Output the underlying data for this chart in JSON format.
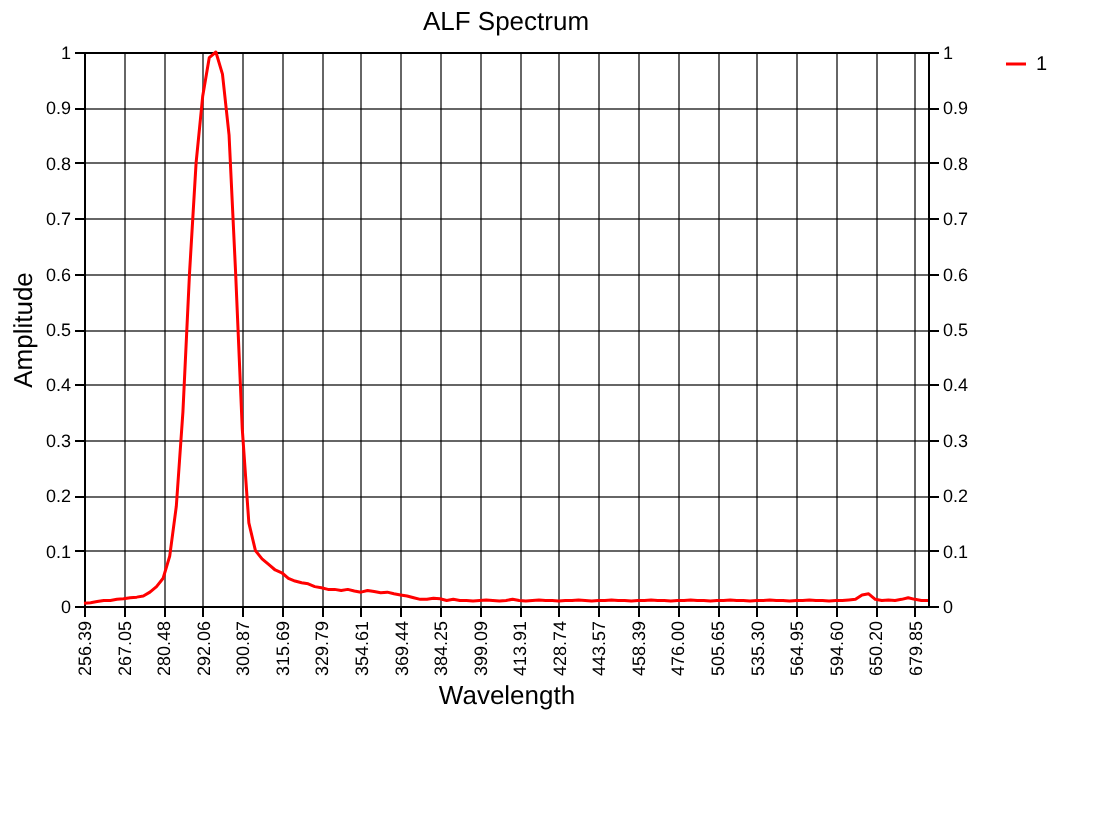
{
  "chart_data": {
    "type": "line",
    "title": "ALF Spectrum",
    "xlabel": "Wavelength",
    "ylabel": "Amplitude",
    "categories": [
      "256.39",
      null,
      null,
      null,
      null,
      null,
      "267.05",
      null,
      null,
      null,
      null,
      null,
      "280.48",
      null,
      null,
      null,
      null,
      null,
      "292.06",
      null,
      null,
      null,
      null,
      null,
      "300.87",
      null,
      null,
      null,
      null,
      null,
      "315.69",
      null,
      null,
      null,
      null,
      null,
      "329.79",
      null,
      null,
      null,
      null,
      null,
      "354.61",
      null,
      null,
      null,
      null,
      null,
      "369.44",
      null,
      null,
      null,
      null,
      null,
      "384.25",
      null,
      null,
      null,
      null,
      null,
      "399.09",
      null,
      null,
      null,
      null,
      null,
      "413.91",
      null,
      null,
      null,
      null,
      null,
      "428.74",
      null,
      null,
      null,
      null,
      null,
      "443.57",
      null,
      null,
      null,
      null,
      null,
      "458.39",
      null,
      null,
      null,
      null,
      null,
      "476.00",
      null,
      null,
      null,
      null,
      null,
      "505.65",
      null,
      null,
      null,
      null,
      null,
      "535.30",
      null,
      null,
      null,
      null,
      null,
      "564.95",
      null,
      null,
      null,
      null,
      null,
      "594.60",
      null,
      null,
      null,
      null,
      null,
      "650.20",
      null,
      null,
      null,
      null,
      null,
      "679.85",
      null,
      null
    ],
    "series": [
      {
        "name": "1",
        "color": "#ff0000",
        "values": [
          0.005,
          0.006,
          0.008,
          0.01,
          0.01,
          0.012,
          0.013,
          0.015,
          0.016,
          0.018,
          0.025,
          0.035,
          0.05,
          0.09,
          0.18,
          0.35,
          0.6,
          0.8,
          0.92,
          0.99,
          1.0,
          0.96,
          0.85,
          0.6,
          0.32,
          0.15,
          0.1,
          0.085,
          0.075,
          0.065,
          0.06,
          0.05,
          0.045,
          0.042,
          0.04,
          0.035,
          0.033,
          0.03,
          0.03,
          0.028,
          0.03,
          0.027,
          0.025,
          0.028,
          0.026,
          0.024,
          0.025,
          0.022,
          0.02,
          0.018,
          0.015,
          0.012,
          0.012,
          0.014,
          0.013,
          0.01,
          0.012,
          0.01,
          0.01,
          0.009,
          0.01,
          0.011,
          0.01,
          0.009,
          0.01,
          0.012,
          0.01,
          0.009,
          0.01,
          0.011,
          0.01,
          0.01,
          0.009,
          0.01,
          0.01,
          0.011,
          0.01,
          0.009,
          0.01,
          0.01,
          0.011,
          0.01,
          0.01,
          0.009,
          0.01,
          0.01,
          0.011,
          0.01,
          0.01,
          0.009,
          0.01,
          0.01,
          0.011,
          0.01,
          0.01,
          0.009,
          0.01,
          0.01,
          0.011,
          0.01,
          0.01,
          0.009,
          0.01,
          0.01,
          0.011,
          0.01,
          0.01,
          0.009,
          0.01,
          0.01,
          0.011,
          0.01,
          0.01,
          0.009,
          0.01,
          0.01,
          0.011,
          0.012,
          0.02,
          0.022,
          0.012,
          0.01,
          0.011,
          0.01,
          0.012,
          0.015,
          0.012,
          0.01,
          0.01
        ]
      }
    ],
    "ylim": [
      0,
      1
    ],
    "yticks": [
      0,
      0.1,
      0.2,
      0.3,
      0.4,
      0.5,
      0.6,
      0.7,
      0.8,
      0.9,
      1
    ],
    "y2lim": [
      0,
      1
    ],
    "y2ticks": [
      0,
      0.1,
      0.2,
      0.3,
      0.4,
      0.5,
      0.6,
      0.7,
      0.8,
      0.9,
      1
    ],
    "grid": true,
    "legend": "right",
    "marker": "none",
    "line_style": "solid"
  }
}
